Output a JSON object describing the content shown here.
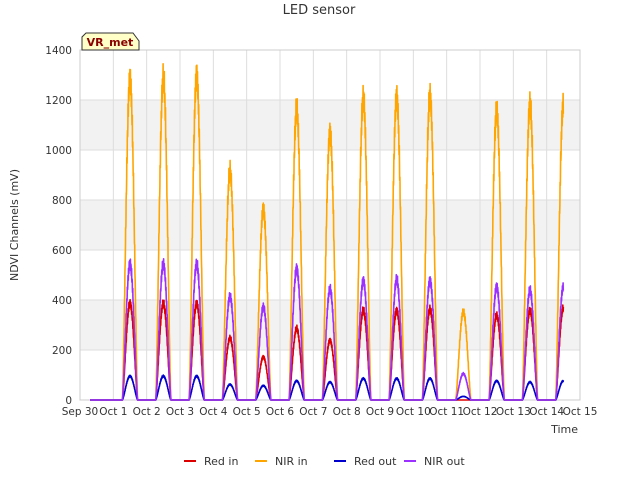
{
  "chart_data": {
    "type": "line",
    "title": "LED sensor",
    "xlabel": "Time",
    "ylabel": "NDVI Channels (mV)",
    "badge": "VR_met",
    "ylim": [
      0,
      1400
    ],
    "yticks": [
      0,
      200,
      400,
      600,
      800,
      1000,
      1200,
      1400
    ],
    "xlim": [
      0,
      15
    ],
    "xticks": [
      {
        "pos": 0,
        "label": "Sep 30"
      },
      {
        "pos": 1,
        "label": "Oct 1"
      },
      {
        "pos": 2,
        "label": "Oct 2"
      },
      {
        "pos": 3,
        "label": "Oct 3"
      },
      {
        "pos": 4,
        "label": "Oct 4"
      },
      {
        "pos": 5,
        "label": "Oct 5"
      },
      {
        "pos": 6,
        "label": "Oct 6"
      },
      {
        "pos": 7,
        "label": "Oct 7"
      },
      {
        "pos": 8,
        "label": "Oct 8"
      },
      {
        "pos": 9,
        "label": "Oct 9"
      },
      {
        "pos": 10,
        "label": "Oct 10"
      },
      {
        "pos": 11,
        "label": "Oct 11"
      },
      {
        "pos": 12,
        "label": "Oct 12"
      },
      {
        "pos": 13,
        "label": "Oct 13"
      },
      {
        "pos": 14,
        "label": "Oct 14"
      },
      {
        "pos": 15,
        "label": "Oct 15"
      }
    ],
    "grid": true,
    "legend_position": "bottom",
    "day_start": 0.3,
    "day_end": 14.5,
    "series": [
      {
        "name": "Red in",
        "color": "#dd0000",
        "daily_peaks": [
          405,
          405,
          405,
          260,
          180,
          300,
          250,
          375,
          375,
          380,
          0,
          355,
          375,
          385
        ]
      },
      {
        "name": "NIR in",
        "color": "#ffa500",
        "daily_peaks": [
          1345,
          1350,
          1360,
          960,
          800,
          1220,
          1120,
          1265,
          1270,
          1275,
          370,
          1215,
          1240,
          1240
        ]
      },
      {
        "name": "Red out",
        "color": "#0000cc",
        "daily_peaks": [
          100,
          100,
          100,
          65,
          60,
          80,
          75,
          90,
          90,
          90,
          15,
          80,
          75,
          80
        ]
      },
      {
        "name": "NIR out",
        "color": "#9b30ff",
        "daily_peaks": [
          570,
          570,
          570,
          435,
          390,
          550,
          465,
          500,
          505,
          500,
          110,
          475,
          460,
          475
        ]
      }
    ]
  }
}
